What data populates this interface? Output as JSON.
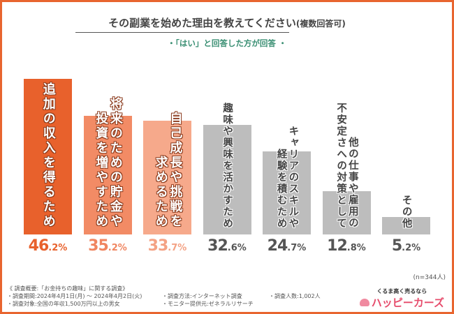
{
  "header": {
    "title": "その副業を始めた理由を教えてください",
    "title_suffix": "(複数回答可)",
    "subtitle": "・「はい」と回答した方が回答 ・"
  },
  "chart_data": {
    "type": "bar",
    "unit": "%",
    "ylim": [
      0,
      50
    ],
    "grid": false,
    "categories": [
      [
        "追加の収入を得るため"
      ],
      [
        "将来のための貯金や",
        "投資を増やすため"
      ],
      [
        "自己成長や挑戦を",
        "求めるため"
      ],
      [
        "趣味や興味を活かすため"
      ],
      [
        "キャリアのスキルや",
        "経験を積むため"
      ],
      [
        "他の仕事や雇用の",
        "不安定さへの対策として"
      ],
      [
        "その他"
      ]
    ],
    "values": [
      46.2,
      35.2,
      33.7,
      32.6,
      24.7,
      12.8,
      5.2
    ],
    "value_labels": [
      [
        "46",
        ".2%"
      ],
      [
        "35",
        ".2%"
      ],
      [
        "33",
        ".7%"
      ],
      [
        "32",
        ".6%"
      ],
      [
        "24",
        ".7%"
      ],
      [
        "12",
        ".8%"
      ],
      [
        "5",
        ".2%"
      ]
    ],
    "colors": [
      "#e8612c",
      "#f28b65",
      "#f6a98b",
      "#bdbdbd",
      "#bdbdbd",
      "#bdbdbd",
      "#bdbdbd"
    ],
    "label_colors": [
      "#e8612c",
      "#f08560",
      "#f4a284",
      "#555555",
      "#555555",
      "#555555",
      "#555555"
    ]
  },
  "sample": "(n=344人)",
  "notes": {
    "overview": "《 調査概要:「お金持ちの趣味」に関する調査》",
    "period": "・調査期間:2024年4月1日(月) 〜 2024年4月2日(火)",
    "method": "・調査方法:インターネット調査",
    "count": "・調査人数:1,002人",
    "target": "・調査対象:全国の年収1,500万円以上の男女",
    "provider": "・モニター提供元:ゼネラルリサーチ"
  },
  "logo": {
    "tagline": "くるま高く売るなら",
    "name": "ハッピーカーズ"
  }
}
